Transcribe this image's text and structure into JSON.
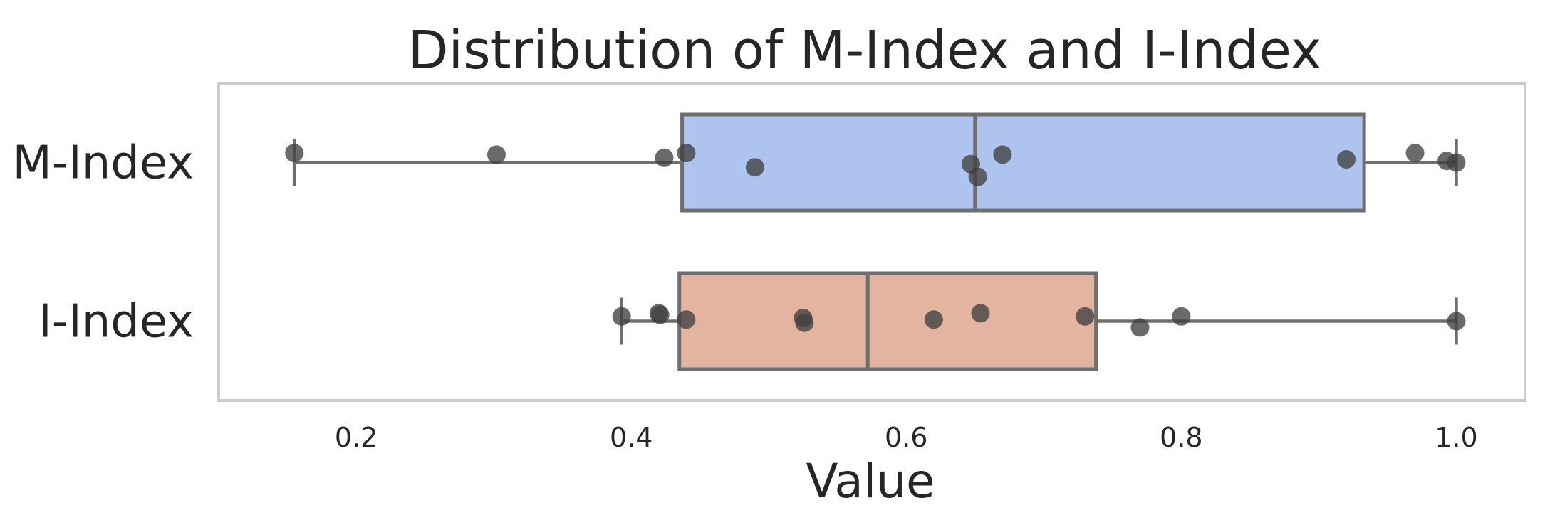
{
  "chart_data": {
    "type": "box",
    "title": "Distribution of M-Index and I-Index",
    "xlabel": "Value",
    "ylabel": "",
    "xlim": [
      0.1,
      1.05
    ],
    "x_ticks": [
      0.2,
      0.4,
      0.6,
      0.8,
      1.0
    ],
    "x_tick_labels": [
      "0.2",
      "0.4",
      "0.6",
      "0.8",
      "1.0"
    ],
    "grid": false,
    "orientation": "horizontal",
    "categories": [
      "M-Index",
      "I-Index"
    ],
    "boxes": [
      {
        "category": "M-Index",
        "color": "#aec3ee",
        "whisker_low": 0.155,
        "q1": 0.437,
        "median": 0.65,
        "q3": 0.933,
        "whisker_high": 1.0,
        "points": [
          {
            "x": 0.155,
            "jitter": -0.06
          },
          {
            "x": 0.302,
            "jitter": -0.05
          },
          {
            "x": 0.424,
            "jitter": -0.03
          },
          {
            "x": 0.44,
            "jitter": -0.06
          },
          {
            "x": 0.49,
            "jitter": 0.03
          },
          {
            "x": 0.647,
            "jitter": 0.01
          },
          {
            "x": 0.652,
            "jitter": 0.09
          },
          {
            "x": 0.67,
            "jitter": -0.05
          },
          {
            "x": 0.92,
            "jitter": -0.02
          },
          {
            "x": 0.97,
            "jitter": -0.06
          },
          {
            "x": 0.993,
            "jitter": -0.01
          },
          {
            "x": 1.0,
            "jitter": 0.0
          }
        ]
      },
      {
        "category": "I-Index",
        "color": "#e3b5a0",
        "whisker_low": 0.393,
        "q1": 0.435,
        "median": 0.572,
        "q3": 0.738,
        "whisker_high": 1.0,
        "points": [
          {
            "x": 0.393,
            "jitter": -0.03
          },
          {
            "x": 0.42,
            "jitter": -0.05
          },
          {
            "x": 0.421,
            "jitter": -0.04
          },
          {
            "x": 0.44,
            "jitter": -0.01
          },
          {
            "x": 0.525,
            "jitter": -0.02
          },
          {
            "x": 0.526,
            "jitter": 0.01
          },
          {
            "x": 0.62,
            "jitter": -0.01
          },
          {
            "x": 0.654,
            "jitter": -0.05
          },
          {
            "x": 0.73,
            "jitter": -0.03
          },
          {
            "x": 0.77,
            "jitter": 0.04
          },
          {
            "x": 0.8,
            "jitter": -0.03
          },
          {
            "x": 1.0,
            "jitter": 0.0
          }
        ]
      }
    ],
    "colors": {
      "box_edge": "#6e6e6e",
      "point": "#404040",
      "frame": "#cccccc",
      "text": "#262626"
    }
  }
}
